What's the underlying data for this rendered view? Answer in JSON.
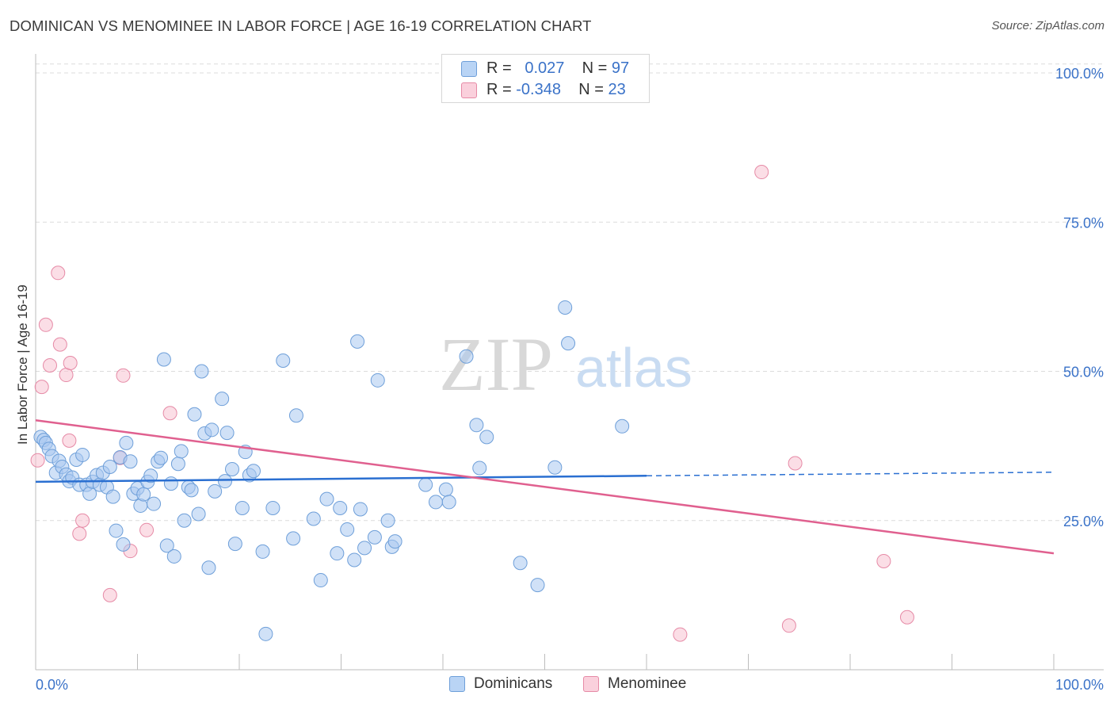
{
  "title": "DOMINICAN VS MENOMINEE IN LABOR FORCE | AGE 16-19 CORRELATION CHART",
  "source": "Source: ZipAtlas.com",
  "watermark": {
    "zip": "ZIP",
    "atlas": "atlas"
  },
  "legend": {
    "rows": [
      {
        "r_label": "R =",
        "r_value": "0.027",
        "n_label": "N =",
        "n_value": "97"
      },
      {
        "r_label": "R =",
        "r_value": "-0.348",
        "n_label": "N =",
        "n_value": "23"
      }
    ]
  },
  "bottom_legend": {
    "dominicans": "Dominicans",
    "menominee": "Menominee"
  },
  "colors": {
    "dominicans_fill": "#a9c8f0",
    "dominicans_stroke": "#6e9fd9",
    "dominicans_line": "#2a6fd1",
    "menominee_fill": "#f7c3d2",
    "menominee_stroke": "#e68aa6",
    "menominee_line": "#e0608f",
    "tick_label": "#3a72c8",
    "grid": "#dcdcdc"
  },
  "chart_data": {
    "type": "scatter",
    "title": "DOMINICAN VS MENOMINEE IN LABOR FORCE | AGE 16-19 CORRELATION CHART",
    "xlabel": "",
    "ylabel": "In Labor Force | Age 16-19",
    "xlim": [
      0,
      100
    ],
    "ylim": [
      0,
      102
    ],
    "x_tick_labels": [
      "0.0%",
      "100.0%"
    ],
    "y_ticks": [
      25,
      50,
      75,
      100
    ],
    "y_tick_labels": [
      "25.0%",
      "50.0%",
      "75.0%",
      "100.0%"
    ],
    "grid": true,
    "series": [
      {
        "name": "Dominicans",
        "r": 0.027,
        "n": 97,
        "trend": {
          "x0": 0,
          "y0": 31.5,
          "x1": 60,
          "y1": 32.5,
          "x_dash_end": 100,
          "y_dash_end": 33.1
        },
        "points": [
          [
            0.5,
            39
          ],
          [
            0.8,
            38.5
          ],
          [
            1.0,
            38
          ],
          [
            1.3,
            37
          ],
          [
            1.6,
            35.8
          ],
          [
            2.0,
            33
          ],
          [
            2.3,
            35
          ],
          [
            2.6,
            34
          ],
          [
            3.0,
            32.7
          ],
          [
            3.3,
            31.6
          ],
          [
            3.6,
            32.2
          ],
          [
            4.0,
            35.2
          ],
          [
            4.3,
            31
          ],
          [
            4.6,
            36
          ],
          [
            5.0,
            31
          ],
          [
            5.3,
            29.5
          ],
          [
            5.6,
            31.5
          ],
          [
            6.0,
            32.6
          ],
          [
            6.3,
            31
          ],
          [
            6.6,
            33
          ],
          [
            7.0,
            30.6
          ],
          [
            7.3,
            34
          ],
          [
            7.6,
            29
          ],
          [
            7.9,
            23.3
          ],
          [
            8.3,
            35.6
          ],
          [
            8.6,
            21
          ],
          [
            8.9,
            38
          ],
          [
            9.3,
            34.9
          ],
          [
            9.6,
            29.5
          ],
          [
            10.0,
            30.4
          ],
          [
            10.3,
            27.5
          ],
          [
            10.6,
            29.4
          ],
          [
            11.0,
            31.5
          ],
          [
            11.3,
            32.5
          ],
          [
            11.6,
            27.8
          ],
          [
            12.0,
            34.9
          ],
          [
            12.3,
            35.5
          ],
          [
            12.6,
            52
          ],
          [
            12.9,
            20.8
          ],
          [
            13.3,
            31.2
          ],
          [
            13.6,
            19
          ],
          [
            14.0,
            34.5
          ],
          [
            14.3,
            36.6
          ],
          [
            14.6,
            25
          ],
          [
            15.0,
            30.6
          ],
          [
            15.3,
            30.1
          ],
          [
            15.6,
            42.8
          ],
          [
            16.0,
            26.1
          ],
          [
            16.3,
            50
          ],
          [
            16.6,
            39.6
          ],
          [
            17.0,
            17.1
          ],
          [
            17.3,
            40.2
          ],
          [
            17.6,
            29.9
          ],
          [
            18.3,
            45.4
          ],
          [
            18.6,
            31.6
          ],
          [
            18.8,
            39.7
          ],
          [
            19.3,
            33.6
          ],
          [
            19.6,
            21.1
          ],
          [
            20.3,
            27.1
          ],
          [
            20.6,
            36.5
          ],
          [
            21.0,
            32.6
          ],
          [
            21.4,
            33.3
          ],
          [
            22.3,
            19.8
          ],
          [
            22.6,
            6
          ],
          [
            23.3,
            27.1
          ],
          [
            24.3,
            51.8
          ],
          [
            25.3,
            22
          ],
          [
            25.6,
            42.6
          ],
          [
            27.3,
            25.3
          ],
          [
            28.0,
            15
          ],
          [
            28.6,
            28.6
          ],
          [
            29.6,
            19.5
          ],
          [
            29.9,
            27.1
          ],
          [
            30.6,
            23.5
          ],
          [
            31.3,
            18.4
          ],
          [
            31.6,
            55
          ],
          [
            31.9,
            26.9
          ],
          [
            32.3,
            20.4
          ],
          [
            33.3,
            22.2
          ],
          [
            33.6,
            48.5
          ],
          [
            34.6,
            25
          ],
          [
            35.0,
            20.6
          ],
          [
            35.3,
            21.5
          ],
          [
            38.3,
            31
          ],
          [
            39.3,
            28.1
          ],
          [
            40.3,
            30.2
          ],
          [
            40.6,
            28.1
          ],
          [
            42.3,
            52.5
          ],
          [
            43.3,
            41
          ],
          [
            43.6,
            33.8
          ],
          [
            44.3,
            39
          ],
          [
            47.6,
            17.9
          ],
          [
            49.3,
            14.2
          ],
          [
            51.0,
            33.9
          ],
          [
            52.0,
            60.7
          ],
          [
            52.3,
            54.7
          ],
          [
            57.6,
            40.8
          ]
        ]
      },
      {
        "name": "Menominee",
        "r": -0.348,
        "n": 23,
        "trend": {
          "x0": 0,
          "y0": 41.8,
          "x1": 100,
          "y1": 19.5
        },
        "points": [
          [
            0.2,
            35.1
          ],
          [
            0.6,
            47.4
          ],
          [
            1.0,
            57.8
          ],
          [
            1.4,
            51
          ],
          [
            2.2,
            66.5
          ],
          [
            2.4,
            54.5
          ],
          [
            3.0,
            49.4
          ],
          [
            3.4,
            51.4
          ],
          [
            3.3,
            38.4
          ],
          [
            4.3,
            22.8
          ],
          [
            4.6,
            25
          ],
          [
            7.3,
            12.5
          ],
          [
            8.3,
            35.5
          ],
          [
            8.6,
            49.3
          ],
          [
            9.3,
            19.9
          ],
          [
            10.9,
            23.4
          ],
          [
            13.2,
            43
          ],
          [
            63.3,
            5.9
          ],
          [
            71.3,
            83.4
          ],
          [
            74.0,
            7.4
          ],
          [
            74.6,
            34.6
          ],
          [
            83.3,
            18.2
          ],
          [
            85.6,
            8.8
          ]
        ]
      }
    ]
  }
}
